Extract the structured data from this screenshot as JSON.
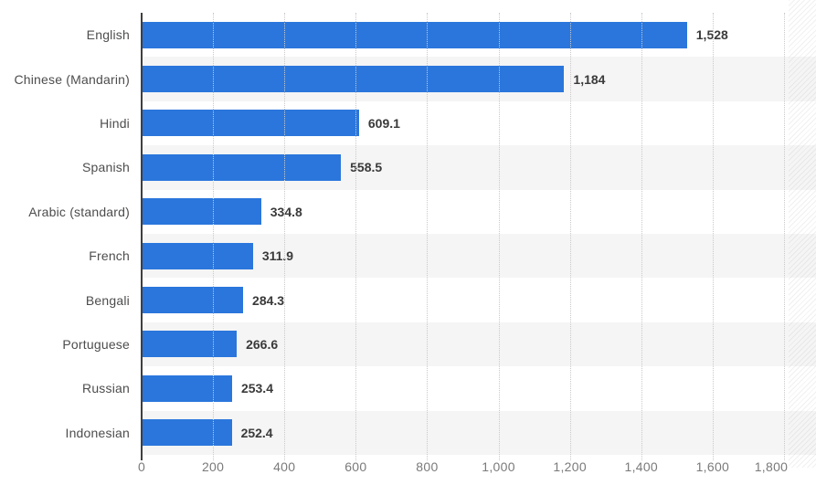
{
  "chart_data": {
    "type": "bar",
    "orientation": "horizontal",
    "categories": [
      "English",
      "Chinese (Mandarin)",
      "Hindi",
      "Spanish",
      "Arabic (standard)",
      "French",
      "Bengali",
      "Portuguese",
      "Russian",
      "Indonesian"
    ],
    "values": [
      1528,
      1184,
      609.1,
      558.5,
      334.8,
      311.9,
      284.3,
      266.6,
      253.4,
      252.4
    ],
    "value_labels": [
      "1,528",
      "1,184",
      "609.1",
      "558.5",
      "334.8",
      "311.9",
      "284.3",
      "266.6",
      "253.4",
      "252.4"
    ],
    "title": "",
    "xlabel": "",
    "ylabel": "",
    "xlim": [
      0,
      1800
    ],
    "x_ticks": [
      "0",
      "200",
      "400",
      "600",
      "800",
      "1,000",
      "1,200",
      "1,400",
      "1,600",
      "1,800"
    ],
    "x_tick_values": [
      0,
      200,
      400,
      600,
      800,
      1000,
      1200,
      1400,
      1600,
      1800
    ],
    "grid": true,
    "legend": false,
    "colors": {
      "bar": "#2a76dc",
      "row_stripe": "#f5f5f5",
      "gridline": "#c9c9c9",
      "axis": "#3f3f3f",
      "category_label": "#4d4d4d",
      "value_label": "#3a3a3a",
      "tick_label": "#7a7a7a"
    }
  }
}
